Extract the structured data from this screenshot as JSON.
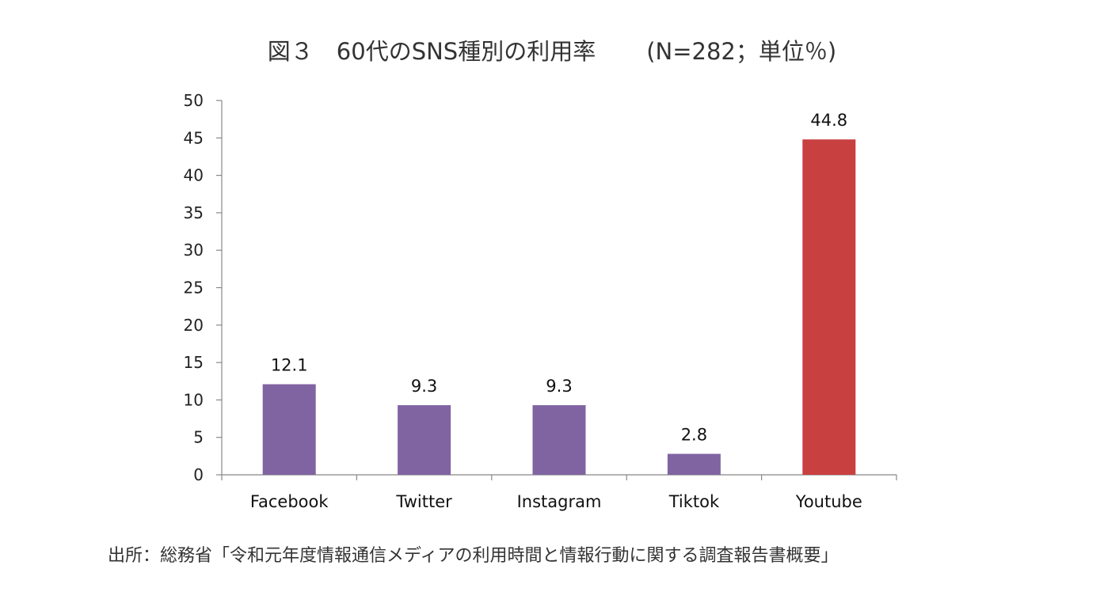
{
  "header": {
    "title": "図３　60代のSNS種別の利用率",
    "note": "(N=282；単位％)"
  },
  "chart_data": {
    "type": "bar",
    "title": "図３　60代のSNS種別の利用率　(N=282；単位％)",
    "categories": [
      "Facebook",
      "Twitter",
      "Instagram",
      "Tiktok",
      "Youtube"
    ],
    "values": [
      12.1,
      9.3,
      9.3,
      2.8,
      44.8
    ],
    "value_labels": [
      "12.1",
      "9.3",
      "9.3",
      "2.8",
      "44.8"
    ],
    "bar_colors": [
      "#8064A2",
      "#8064A2",
      "#8064A2",
      "#8064A2",
      "#C94040"
    ],
    "ylim": [
      0,
      50
    ],
    "yticks": [
      0,
      5,
      10,
      15,
      20,
      25,
      30,
      35,
      40,
      45,
      50
    ],
    "xlabel": "",
    "ylabel": "",
    "grid": false,
    "legend": "none"
  },
  "footer": {
    "source": "出所：総務省「令和元年度情報通信メディアの利用時間と情報行動に関する調査報告書概要」"
  }
}
